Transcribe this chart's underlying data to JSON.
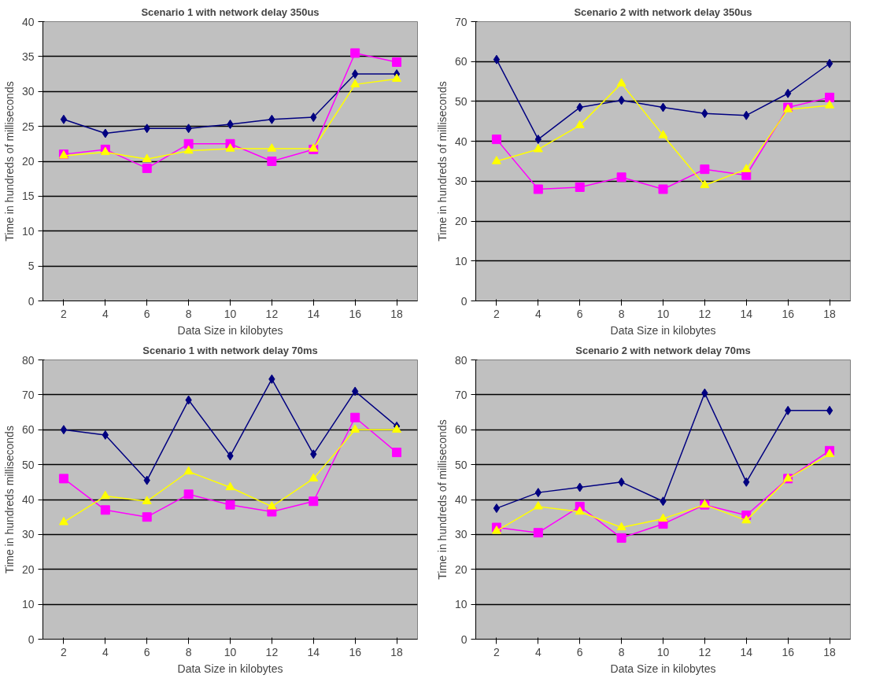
{
  "chart_data": [
    {
      "type": "line",
      "title": "Scenario 1 with network delay 350us",
      "xlabel": "Data Size in kilobytes",
      "ylabel": "Time in hundreds of milliseconds",
      "categories": [
        "2",
        "4",
        "6",
        "8",
        "10",
        "12",
        "14",
        "16",
        "18"
      ],
      "ylim": [
        0,
        40
      ],
      "yticks": [
        0,
        5,
        10,
        15,
        20,
        25,
        30,
        35,
        40
      ],
      "grid": "y",
      "series": [
        {
          "color": "#000080",
          "marker": "diamond",
          "values": [
            26,
            24,
            24.7,
            24.7,
            25.3,
            26,
            26.3,
            32.5,
            32.5
          ]
        },
        {
          "color": "#ff00ff",
          "marker": "square",
          "values": [
            21,
            21.7,
            19,
            22.5,
            22.5,
            20,
            21.7,
            35.5,
            34.2
          ]
        },
        {
          "color": "#ffff00",
          "marker": "triangle",
          "values": [
            20.8,
            21.3,
            20.3,
            21.5,
            21.8,
            21.8,
            21.8,
            31,
            31.8
          ]
        }
      ]
    },
    {
      "type": "line",
      "title": "Scenario 2 with network delay 350us",
      "xlabel": "Data Size in kilobytes",
      "ylabel": "Time in hundreds of milliseconds",
      "categories": [
        "2",
        "4",
        "6",
        "8",
        "10",
        "12",
        "14",
        "16",
        "18"
      ],
      "ylim": [
        0,
        70
      ],
      "yticks": [
        0,
        10,
        20,
        30,
        40,
        50,
        60,
        70
      ],
      "grid": "y",
      "series": [
        {
          "color": "#000080",
          "marker": "diamond",
          "values": [
            60.5,
            40.5,
            48.5,
            50.3,
            48.5,
            47,
            46.5,
            52,
            59.5
          ]
        },
        {
          "color": "#ff00ff",
          "marker": "square",
          "values": [
            40.5,
            28,
            28.5,
            31,
            28,
            33,
            31.5,
            48.5,
            51
          ]
        },
        {
          "color": "#ffff00",
          "marker": "triangle",
          "values": [
            35,
            38,
            44,
            54.5,
            41.5,
            29,
            33,
            48,
            49
          ]
        }
      ]
    },
    {
      "type": "line",
      "title": "Scenario 1 with network delay 70ms",
      "xlabel": "Data Size in kilobytes",
      "ylabel": "Time in hundreds milliseconds",
      "categories": [
        "2",
        "4",
        "6",
        "8",
        "10",
        "12",
        "14",
        "16",
        "18"
      ],
      "ylim": [
        0,
        80
      ],
      "yticks": [
        0,
        10,
        20,
        30,
        40,
        50,
        60,
        70,
        80
      ],
      "grid": "y",
      "series": [
        {
          "color": "#000080",
          "marker": "diamond",
          "values": [
            60,
            58.5,
            45.5,
            68.5,
            52.5,
            74.5,
            53,
            71,
            61
          ]
        },
        {
          "color": "#ff00ff",
          "marker": "square",
          "values": [
            46,
            37,
            35,
            41.5,
            38.5,
            36.5,
            39.5,
            63.5,
            53.5
          ]
        },
        {
          "color": "#ffff00",
          "marker": "triangle",
          "values": [
            33.5,
            41,
            39.5,
            48,
            43.5,
            38,
            46,
            60,
            60
          ]
        }
      ]
    },
    {
      "type": "line",
      "title": "Scenario 2 with network delay 70ms",
      "xlabel": "Data Size in kilobytes",
      "ylabel": "Time in hundreds of milliseconds",
      "categories": [
        "2",
        "4",
        "6",
        "8",
        "10",
        "12",
        "14",
        "16",
        "18"
      ],
      "ylim": [
        0,
        80
      ],
      "yticks": [
        0,
        10,
        20,
        30,
        40,
        50,
        60,
        70,
        80
      ],
      "grid": "y",
      "series": [
        {
          "color": "#000080",
          "marker": "diamond",
          "values": [
            37.5,
            42,
            43.5,
            45,
            39.5,
            70.5,
            45,
            65.5,
            65.5
          ]
        },
        {
          "color": "#ff00ff",
          "marker": "square",
          "values": [
            32,
            30.5,
            38,
            29,
            33,
            38.5,
            35.5,
            46,
            54
          ]
        },
        {
          "color": "#ffff00",
          "marker": "triangle",
          "values": [
            31,
            38,
            36.5,
            32,
            34.5,
            38.5,
            34,
            46,
            53
          ]
        }
      ]
    }
  ]
}
